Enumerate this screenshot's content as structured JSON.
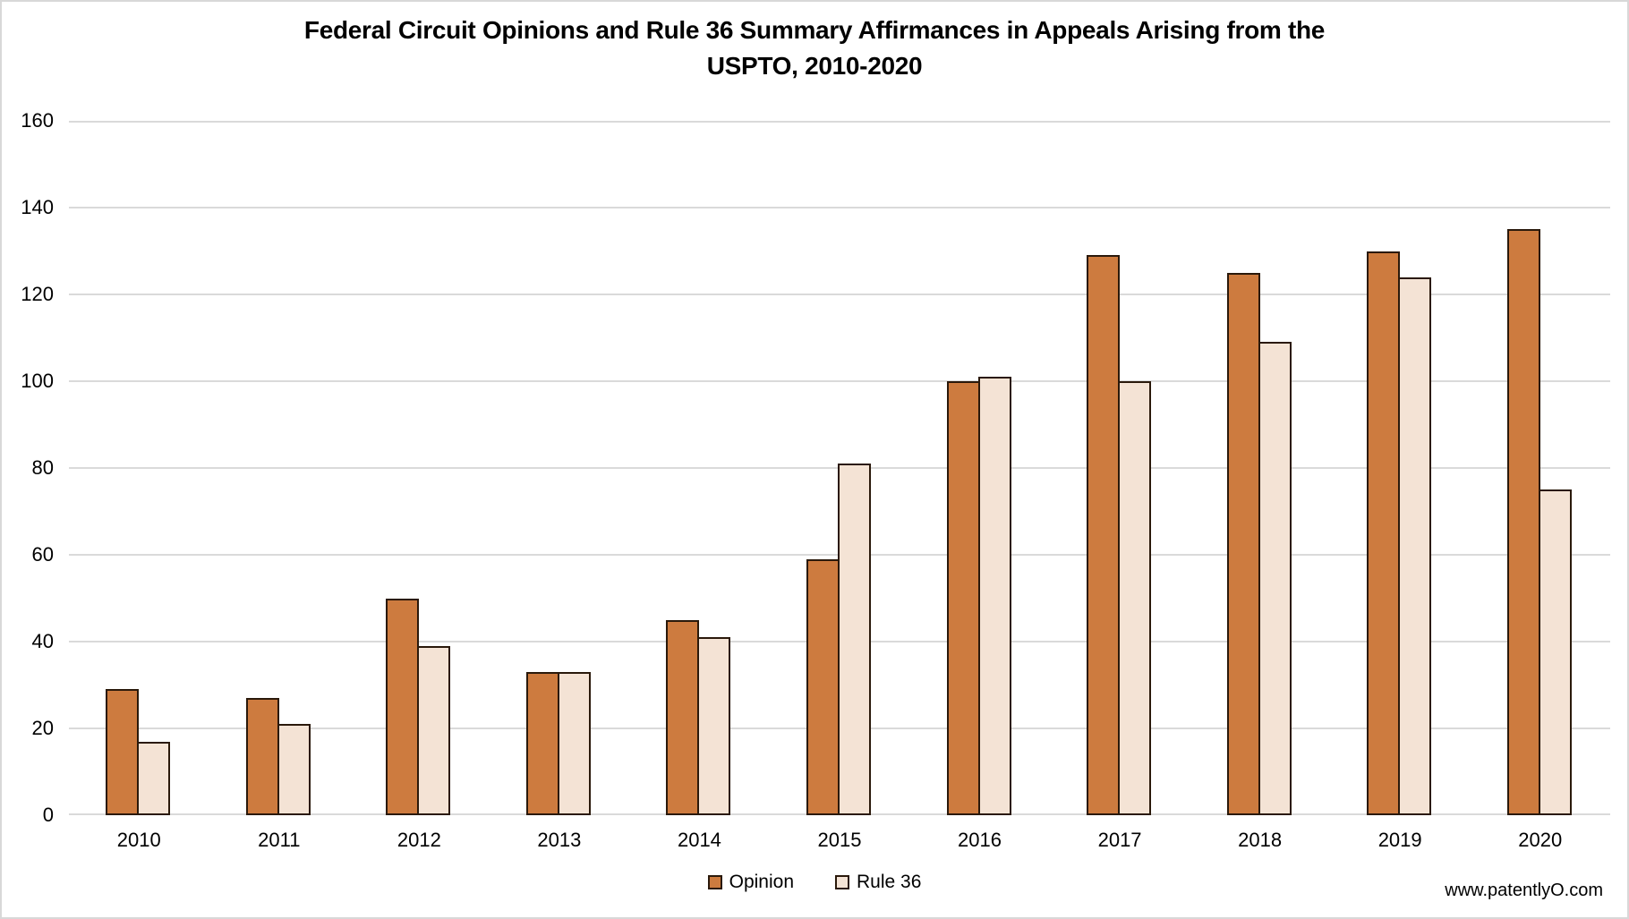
{
  "chart_data": {
    "type": "bar",
    "title": "Federal Circuit Opinions and Rule 36 Summary Affirmances in Appeals Arising from the USPTO, 2010-2020",
    "title_lines": [
      "Federal Circuit Opinions and Rule 36 Summary Affirmances in Appeals Arising from the",
      "USPTO, 2010-2020"
    ],
    "categories": [
      "2010",
      "2011",
      "2012",
      "2013",
      "2014",
      "2015",
      "2016",
      "2017",
      "2018",
      "2019",
      "2020"
    ],
    "series": [
      {
        "name": "Opinion",
        "color": "#cd7b3f",
        "values": [
          29,
          27,
          50,
          33,
          45,
          59,
          100,
          129,
          125,
          130,
          135
        ]
      },
      {
        "name": "Rule 36",
        "color": "#f4e3d5",
        "values": [
          17,
          21,
          39,
          33,
          41,
          81,
          101,
          100,
          109,
          124,
          75
        ]
      }
    ],
    "xlabel": "",
    "ylabel": "",
    "ylim": [
      0,
      160
    ],
    "yticks": [
      0,
      20,
      40,
      60,
      80,
      100,
      120,
      140,
      160
    ],
    "grid": "horizontal",
    "legend_position": "bottom",
    "bar_border_color": "#2a190b",
    "gridline_color": "#dadada"
  },
  "footer": {
    "watermark": "www.patentlyO.com"
  }
}
